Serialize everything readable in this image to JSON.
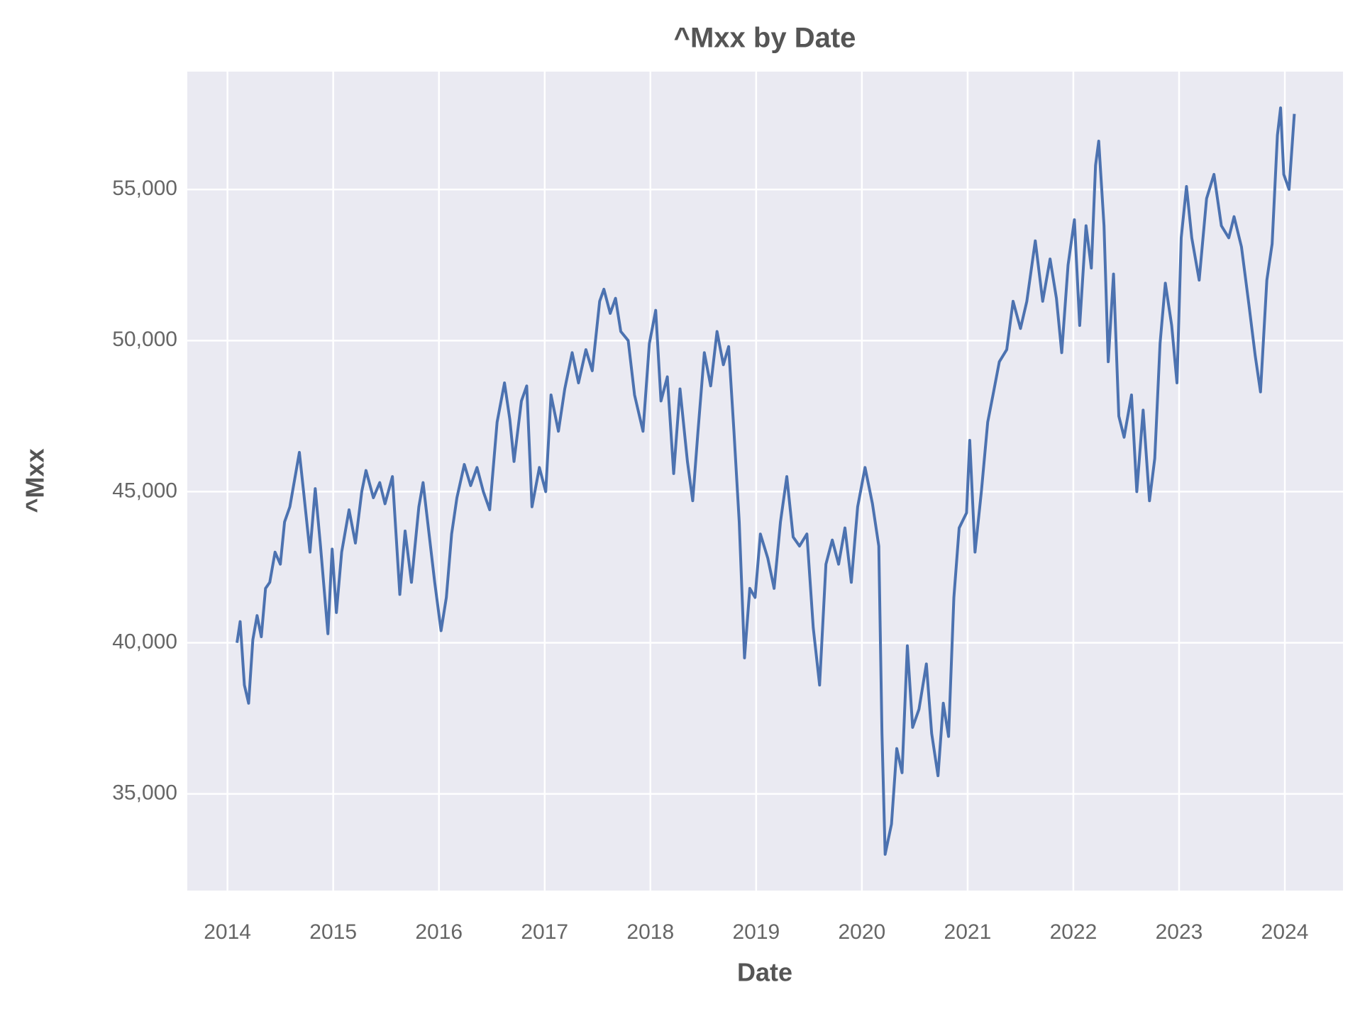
{
  "chart_data": {
    "type": "line",
    "title": "^Mxx by Date",
    "x_label": "Date",
    "y_label": "^Mxx",
    "color": "#4c72b0",
    "grid": true,
    "xlim": [
      2013.62,
      2024.55
    ],
    "xticks": [
      2014,
      2015,
      2016,
      2017,
      2018,
      2019,
      2020,
      2021,
      2022,
      2023,
      2024
    ],
    "ylim": [
      31800,
      58900
    ],
    "yticks": [
      {
        "value": 35000,
        "label": "35,000"
      },
      {
        "value": 40000,
        "label": "40,000"
      },
      {
        "value": 45000,
        "label": "45,000"
      },
      {
        "value": 50000,
        "label": "50,000"
      },
      {
        "value": 55000,
        "label": "55,000"
      }
    ],
    "x": [
      2014.09,
      2014.12,
      2014.16,
      2014.2,
      2014.24,
      2014.28,
      2014.32,
      2014.36,
      2014.4,
      2014.45,
      2014.5,
      2014.54,
      2014.59,
      2014.64,
      2014.68,
      2014.72,
      2014.78,
      2014.83,
      2014.88,
      2014.95,
      2014.99,
      2015.03,
      2015.08,
      2015.15,
      2015.21,
      2015.27,
      2015.31,
      2015.38,
      2015.44,
      2015.49,
      2015.56,
      2015.63,
      2015.68,
      2015.74,
      2015.81,
      2015.85,
      2015.91,
      2015.96,
      2016.02,
      2016.07,
      2016.12,
      2016.17,
      2016.24,
      2016.3,
      2016.36,
      2016.42,
      2016.48,
      2016.55,
      2016.62,
      2016.67,
      2016.71,
      2016.78,
      2016.83,
      2016.88,
      2016.95,
      2017.01,
      2017.06,
      2017.13,
      2017.19,
      2017.26,
      2017.32,
      2017.39,
      2017.45,
      2017.52,
      2017.56,
      2017.62,
      2017.67,
      2017.72,
      2017.79,
      2017.85,
      2017.93,
      2017.99,
      2018.05,
      2018.1,
      2018.16,
      2018.22,
      2018.28,
      2018.35,
      2018.4,
      2018.45,
      2018.51,
      2018.57,
      2018.63,
      2018.69,
      2018.74,
      2018.79,
      2018.84,
      2018.89,
      2018.94,
      2018.99,
      2019.04,
      2019.11,
      2019.17,
      2019.23,
      2019.29,
      2019.35,
      2019.41,
      2019.48,
      2019.54,
      2019.6,
      2019.66,
      2019.72,
      2019.78,
      2019.84,
      2019.9,
      2019.96,
      2020.03,
      2020.1,
      2020.16,
      2020.19,
      2020.22,
      2020.28,
      2020.33,
      2020.38,
      2020.43,
      2020.48,
      2020.54,
      2020.61,
      2020.66,
      2020.72,
      2020.77,
      2020.82,
      2020.87,
      2020.92,
      2020.99,
      2021.02,
      2021.07,
      2021.13,
      2021.19,
      2021.24,
      2021.3,
      2021.37,
      2021.43,
      2021.5,
      2021.56,
      2021.64,
      2021.71,
      2021.78,
      2021.84,
      2021.89,
      2021.95,
      2022.01,
      2022.06,
      2022.12,
      2022.17,
      2022.21,
      2022.24,
      2022.29,
      2022.33,
      2022.38,
      2022.43,
      2022.48,
      2022.55,
      2022.6,
      2022.66,
      2022.72,
      2022.77,
      2022.82,
      2022.87,
      2022.93,
      2022.98,
      2023.02,
      2023.07,
      2023.12,
      2023.19,
      2023.26,
      2023.33,
      2023.4,
      2023.47,
      2023.52,
      2023.59,
      2023.66,
      2023.72,
      2023.77,
      2023.83,
      2023.88,
      2023.93,
      2023.96,
      2023.99,
      2024.04,
      2024.09
    ],
    "values": [
      40000,
      40700,
      38600,
      38000,
      40100,
      40900,
      40200,
      41800,
      42000,
      43000,
      42600,
      44000,
      44500,
      45500,
      46300,
      45000,
      43000,
      45100,
      43200,
      40300,
      43100,
      41000,
      43000,
      44400,
      43300,
      45000,
      45700,
      44800,
      45300,
      44600,
      45500,
      41600,
      43700,
      42000,
      44500,
      45300,
      43500,
      42000,
      40400,
      41500,
      43600,
      44800,
      45900,
      45200,
      45800,
      45000,
      44400,
      47300,
      48600,
      47400,
      46000,
      48000,
      48500,
      44500,
      45800,
      45000,
      48200,
      47000,
      48400,
      49600,
      48600,
      49700,
      49000,
      51300,
      51700,
      50900,
      51400,
      50300,
      50000,
      48200,
      47000,
      49900,
      51000,
      48000,
      48800,
      45600,
      48400,
      46000,
      44700,
      47000,
      49600,
      48500,
      50300,
      49200,
      49800,
      47000,
      44000,
      39500,
      41800,
      41500,
      43600,
      42800,
      41800,
      44000,
      45500,
      43500,
      43200,
      43600,
      40500,
      38600,
      42600,
      43400,
      42600,
      43800,
      42000,
      44500,
      45800,
      44600,
      43200,
      37000,
      33000,
      34000,
      36500,
      35700,
      39900,
      37200,
      37800,
      39300,
      37000,
      35600,
      38000,
      36900,
      41500,
      43800,
      44300,
      46700,
      43000,
      45000,
      47300,
      48200,
      49300,
      49700,
      51300,
      50400,
      51300,
      53300,
      51300,
      52700,
      51400,
      49600,
      52500,
      54000,
      50500,
      53800,
      52400,
      55800,
      56600,
      53800,
      49300,
      52200,
      47500,
      46800,
      48200,
      45000,
      47700,
      44700,
      46100,
      49900,
      51900,
      50500,
      48600,
      53400,
      55100,
      53400,
      52000,
      54700,
      55500,
      53800,
      53400,
      54100,
      53100,
      51200,
      49500,
      48300,
      52000,
      53200,
      56800,
      57700,
      55500,
      55000,
      57500
    ]
  }
}
